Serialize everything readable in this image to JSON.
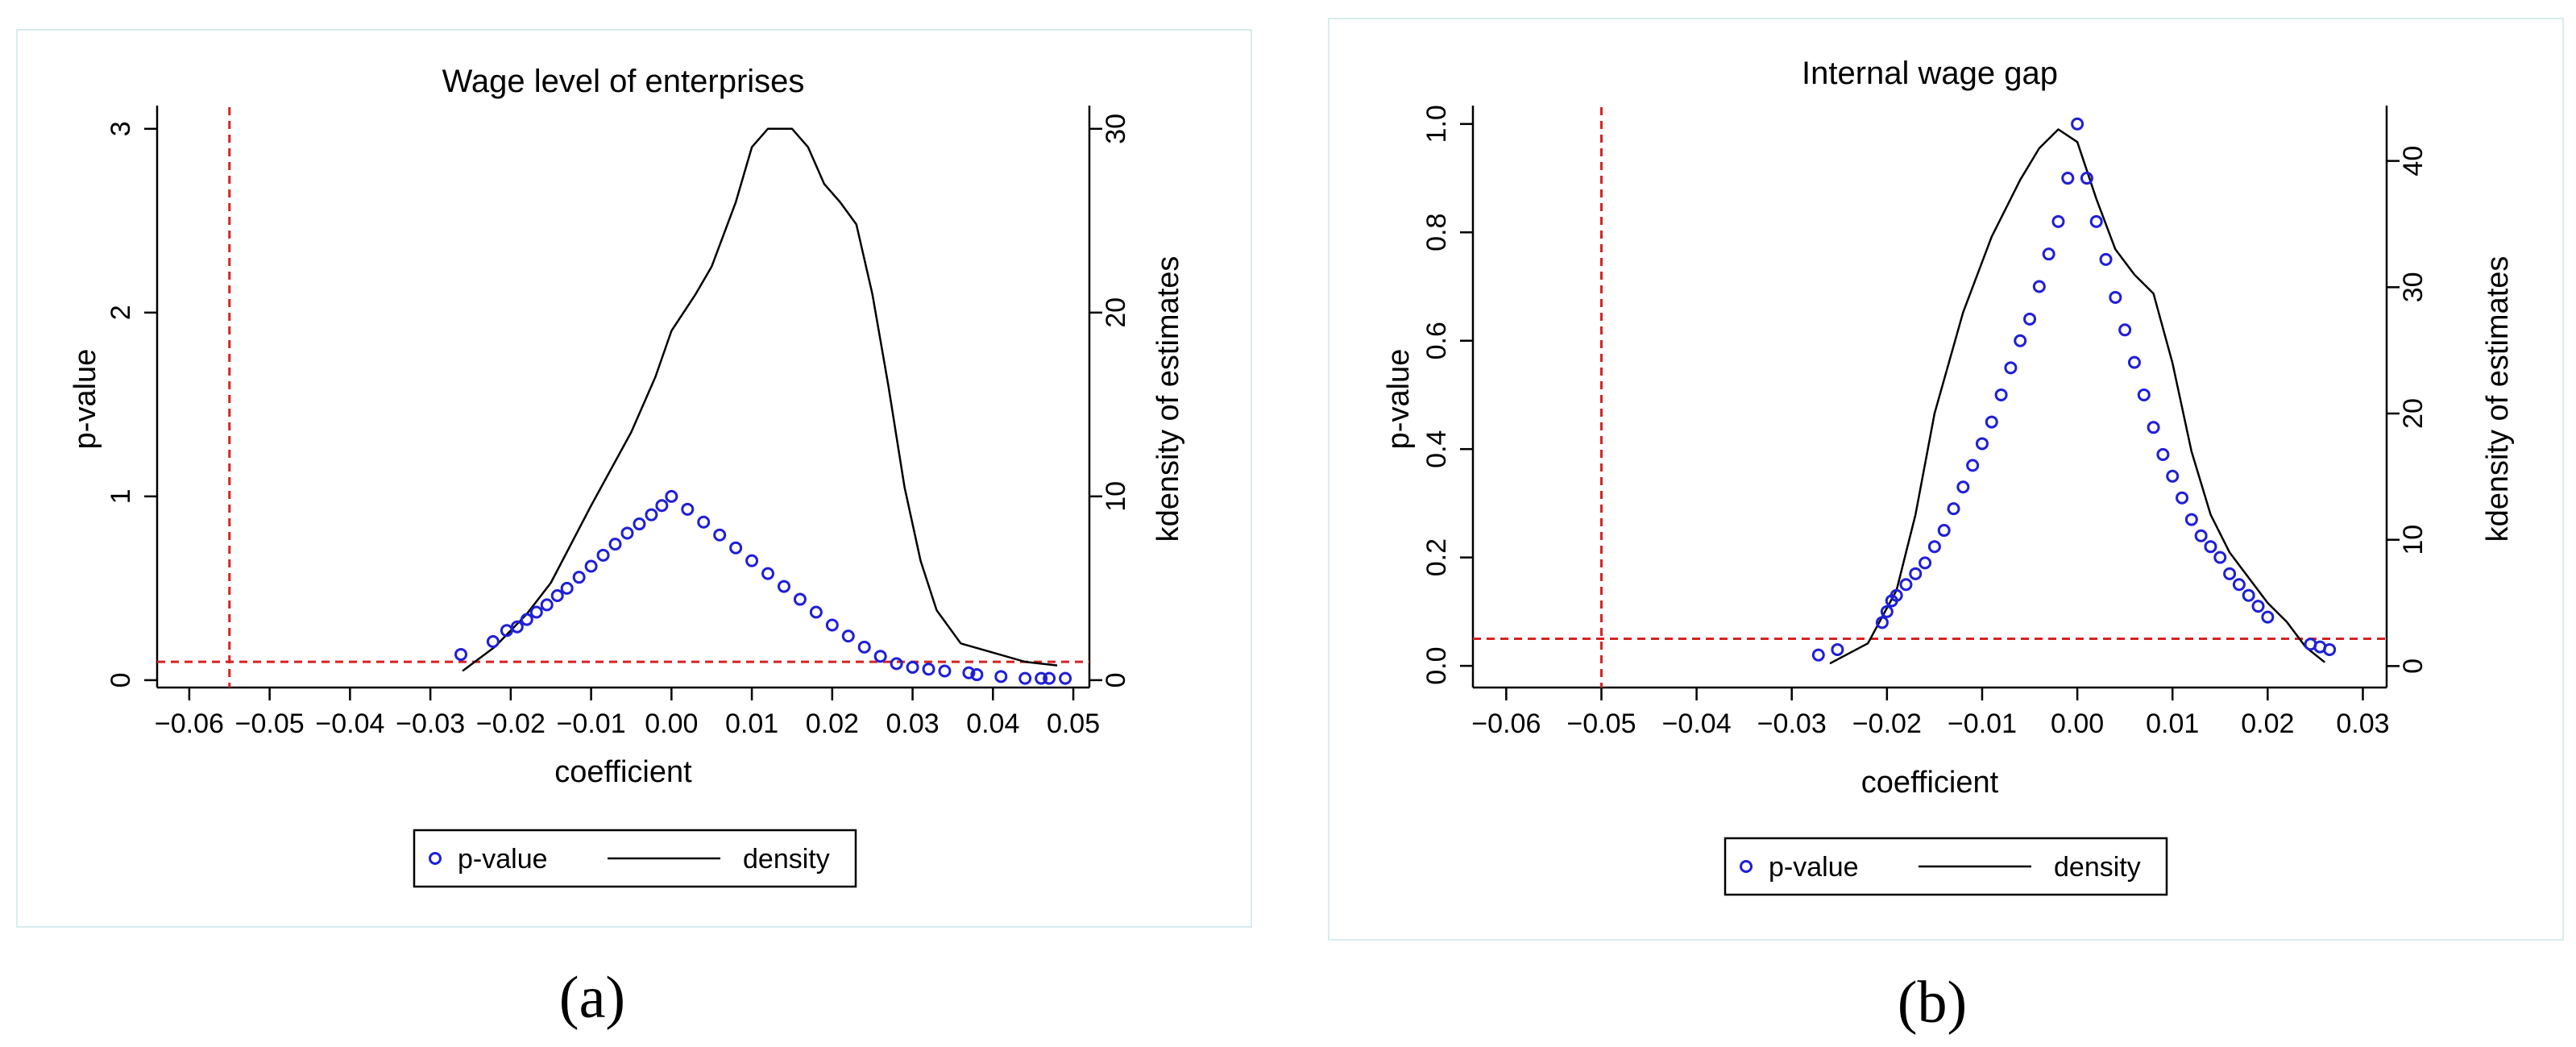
{
  "colors": {
    "pvalue": "#1f1fd6",
    "density": "#000000",
    "threshold": "#d62222"
  },
  "chart_data": [
    {
      "panel_label": "(a)",
      "type": "scatter",
      "title": "Wage level of enterprises",
      "xlabel": "coefficient",
      "ylabel": "p-value",
      "y2label": "kdensity of estimates",
      "xlim": [
        -0.064,
        0.052
      ],
      "ylim": [
        -0.04,
        3.1
      ],
      "y2lim": [
        -0.4,
        31
      ],
      "xticks": [
        -0.06,
        -0.05,
        -0.04,
        -0.03,
        -0.02,
        -0.01,
        0.0,
        0.01,
        0.02,
        0.03,
        0.04,
        0.05
      ],
      "xtick_labels": [
        "−0.06",
        "−0.05",
        "−0.04",
        "−0.03",
        "−0.02",
        "−0.01",
        "0.00",
        "0.01",
        "0.02",
        "0.03",
        "0.04",
        "0.05"
      ],
      "yticks": [
        0,
        1,
        2,
        3
      ],
      "ytick_labels": [
        "0",
        "1",
        "2",
        "3"
      ],
      "y2ticks": [
        0,
        10,
        20,
        30
      ],
      "y2tick_labels": [
        "0",
        "10",
        "20",
        "30"
      ],
      "threshold_x": -0.055,
      "threshold_y": 0.1,
      "pvalue_points": [
        [
          -0.0262,
          0.14
        ],
        [
          -0.0222,
          0.21
        ],
        [
          -0.0205,
          0.27
        ],
        [
          -0.0192,
          0.29
        ],
        [
          -0.018,
          0.33
        ],
        [
          -0.0168,
          0.37
        ],
        [
          -0.0155,
          0.41
        ],
        [
          -0.0142,
          0.46
        ],
        [
          -0.013,
          0.5
        ],
        [
          -0.0115,
          0.56
        ],
        [
          -0.01,
          0.62
        ],
        [
          -0.0085,
          0.68
        ],
        [
          -0.007,
          0.74
        ],
        [
          -0.0055,
          0.8
        ],
        [
          -0.004,
          0.85
        ],
        [
          -0.0025,
          0.9
        ],
        [
          -0.0012,
          0.95
        ],
        [
          0.0,
          1.0
        ],
        [
          0.002,
          0.93
        ],
        [
          0.004,
          0.86
        ],
        [
          0.006,
          0.79
        ],
        [
          0.008,
          0.72
        ],
        [
          0.01,
          0.65
        ],
        [
          0.012,
          0.58
        ],
        [
          0.014,
          0.51
        ],
        [
          0.016,
          0.44
        ],
        [
          0.018,
          0.37
        ],
        [
          0.02,
          0.3
        ],
        [
          0.022,
          0.24
        ],
        [
          0.024,
          0.18
        ],
        [
          0.026,
          0.13
        ],
        [
          0.028,
          0.09
        ],
        [
          0.03,
          0.07
        ],
        [
          0.032,
          0.06
        ],
        [
          0.034,
          0.05
        ],
        [
          0.037,
          0.04
        ],
        [
          0.038,
          0.03
        ],
        [
          0.041,
          0.02
        ],
        [
          0.044,
          0.01
        ],
        [
          0.046,
          0.01
        ],
        [
          0.047,
          0.01
        ],
        [
          0.049,
          0.01
        ]
      ],
      "density_points": [
        [
          -0.026,
          0.5
        ],
        [
          -0.022,
          1.8
        ],
        [
          -0.018,
          3.6
        ],
        [
          -0.015,
          5.3
        ],
        [
          -0.01,
          9.5
        ],
        [
          -0.005,
          13.5
        ],
        [
          -0.002,
          16.5
        ],
        [
          0.0,
          19.0
        ],
        [
          0.003,
          21.0
        ],
        [
          0.005,
          22.5
        ],
        [
          0.008,
          26.0
        ],
        [
          0.01,
          29.0
        ],
        [
          0.012,
          30.0
        ],
        [
          0.015,
          30.0
        ],
        [
          0.017,
          29.0
        ],
        [
          0.019,
          27.0
        ],
        [
          0.021,
          26.0
        ],
        [
          0.023,
          24.8
        ],
        [
          0.025,
          21.0
        ],
        [
          0.027,
          16.0
        ],
        [
          0.029,
          10.5
        ],
        [
          0.031,
          6.5
        ],
        [
          0.033,
          3.8
        ],
        [
          0.036,
          2.0
        ],
        [
          0.04,
          1.5
        ],
        [
          0.044,
          1.0
        ],
        [
          0.048,
          0.8
        ]
      ],
      "legend": [
        "p-value",
        "density"
      ]
    },
    {
      "panel_label": "(b)",
      "type": "scatter",
      "title": "Internal wage gap",
      "xlabel": "coefficient",
      "ylabel": "p-value",
      "y2label": "kdensity of estimates",
      "xlim": [
        -0.0635,
        0.0325
      ],
      "ylim": [
        -0.04,
        1.025
      ],
      "y2lim": [
        -1.7,
        44
      ],
      "xticks": [
        -0.06,
        -0.05,
        -0.04,
        -0.03,
        -0.02,
        -0.01,
        0.0,
        0.01,
        0.02,
        0.03
      ],
      "xtick_labels": [
        "−0.06",
        "−0.05",
        "−0.04",
        "−0.03",
        "−0.02",
        "−0.01",
        "0.00",
        "0.01",
        "0.02",
        "0.03"
      ],
      "yticks": [
        0.0,
        0.2,
        0.4,
        0.6,
        0.8,
        1.0
      ],
      "ytick_labels": [
        "0.0",
        "0.2",
        "0.4",
        "0.6",
        "0.8",
        "1.0"
      ],
      "y2ticks": [
        0,
        10,
        20,
        30,
        40
      ],
      "y2tick_labels": [
        "0",
        "10",
        "20",
        "30",
        "40"
      ],
      "threshold_x": -0.05,
      "threshold_y": 0.05,
      "pvalue_points": [
        [
          -0.0272,
          0.02
        ],
        [
          -0.0252,
          0.03
        ],
        [
          -0.0205,
          0.08
        ],
        [
          -0.02,
          0.1
        ],
        [
          -0.0195,
          0.12
        ],
        [
          -0.019,
          0.13
        ],
        [
          -0.018,
          0.15
        ],
        [
          -0.017,
          0.17
        ],
        [
          -0.016,
          0.19
        ],
        [
          -0.015,
          0.22
        ],
        [
          -0.014,
          0.25
        ],
        [
          -0.013,
          0.29
        ],
        [
          -0.012,
          0.33
        ],
        [
          -0.011,
          0.37
        ],
        [
          -0.01,
          0.41
        ],
        [
          -0.009,
          0.45
        ],
        [
          -0.008,
          0.5
        ],
        [
          -0.007,
          0.55
        ],
        [
          -0.006,
          0.6
        ],
        [
          -0.005,
          0.64
        ],
        [
          -0.004,
          0.7
        ],
        [
          -0.003,
          0.76
        ],
        [
          -0.002,
          0.82
        ],
        [
          -0.001,
          0.9
        ],
        [
          0.0,
          1.0
        ],
        [
          0.001,
          0.9
        ],
        [
          0.002,
          0.82
        ],
        [
          0.003,
          0.75
        ],
        [
          0.004,
          0.68
        ],
        [
          0.005,
          0.62
        ],
        [
          0.006,
          0.56
        ],
        [
          0.007,
          0.5
        ],
        [
          0.008,
          0.44
        ],
        [
          0.009,
          0.39
        ],
        [
          0.01,
          0.35
        ],
        [
          0.011,
          0.31
        ],
        [
          0.012,
          0.27
        ],
        [
          0.013,
          0.24
        ],
        [
          0.014,
          0.22
        ],
        [
          0.015,
          0.2
        ],
        [
          0.016,
          0.17
        ],
        [
          0.017,
          0.15
        ],
        [
          0.018,
          0.13
        ],
        [
          0.019,
          0.11
        ],
        [
          0.02,
          0.09
        ],
        [
          0.0245,
          0.04
        ],
        [
          0.0255,
          0.035
        ],
        [
          0.0265,
          0.03
        ]
      ],
      "density_points": [
        [
          -0.026,
          0.2
        ],
        [
          -0.022,
          1.8
        ],
        [
          -0.019,
          6.0
        ],
        [
          -0.017,
          12.0
        ],
        [
          -0.015,
          20.0
        ],
        [
          -0.012,
          28.0
        ],
        [
          -0.009,
          34.0
        ],
        [
          -0.006,
          38.5
        ],
        [
          -0.004,
          41.0
        ],
        [
          -0.002,
          42.5
        ],
        [
          0.0,
          41.5
        ],
        [
          0.002,
          37.0
        ],
        [
          0.004,
          33.0
        ],
        [
          0.006,
          31.0
        ],
        [
          0.008,
          29.5
        ],
        [
          0.01,
          24.0
        ],
        [
          0.012,
          17.0
        ],
        [
          0.014,
          12.0
        ],
        [
          0.016,
          9.0
        ],
        [
          0.018,
          7.0
        ],
        [
          0.02,
          5.0
        ],
        [
          0.022,
          3.5
        ],
        [
          0.024,
          1.5
        ],
        [
          0.026,
          0.3
        ]
      ],
      "legend": [
        "p-value",
        "density"
      ]
    }
  ]
}
